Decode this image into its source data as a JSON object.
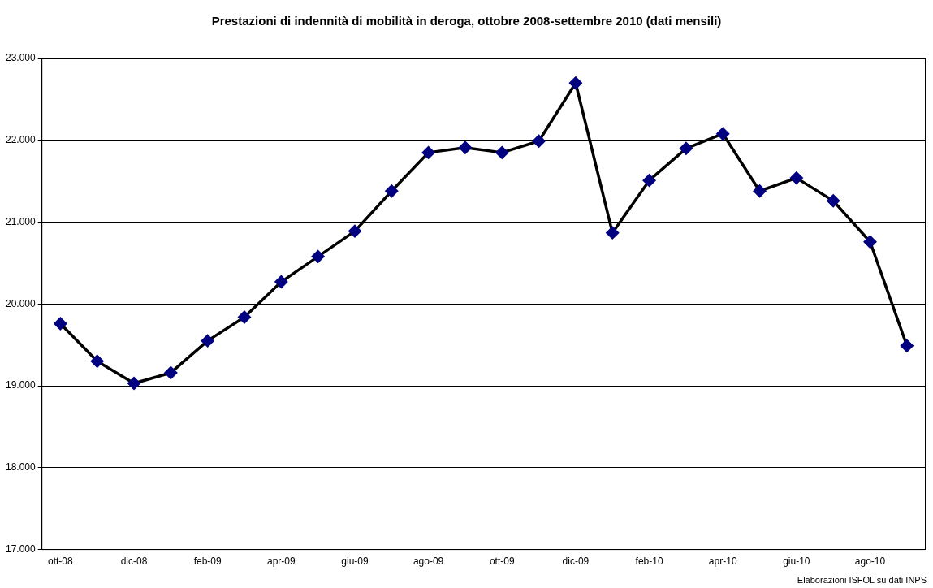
{
  "chart_data": {
    "type": "line",
    "title": "Prestazioni di indennità di mobilità in deroga, ottobre 2008-settembre 2010 (dati mensili)",
    "categories": [
      "ott-08",
      null,
      "dic-08",
      null,
      "feb-09",
      null,
      "apr-09",
      null,
      "giu-09",
      null,
      "ago-09",
      null,
      "ott-09",
      null,
      "dic-09",
      null,
      "feb-10",
      null,
      "apr-10",
      null,
      "giu-10",
      null,
      "ago-10",
      null
    ],
    "series": [
      {
        "color": "#000000",
        "colors": [
          "#000080",
          "#000080",
          "#000080",
          "#000080",
          "#000080",
          "#000080",
          "#000080",
          "#000080",
          "#000080",
          "#000080",
          "#000080",
          "#000080",
          "#000080",
          "#000080",
          "#000080",
          "#000080",
          "#000080",
          "#000080",
          "#000080",
          "#000080",
          "#000080",
          "#000080",
          "#000080",
          "#000080"
        ],
        "values": [
          19760,
          19300,
          19030,
          19160,
          19550,
          19840,
          20270,
          20580,
          20890,
          21380,
          21850,
          21910,
          21850,
          21990,
          22700,
          20870,
          21510,
          21900,
          22080,
          21380,
          21540,
          21260,
          20760,
          19490
        ]
      }
    ],
    "marker": "diamond",
    "line_style": "solid",
    "ylim": [
      17000,
      23000
    ],
    "yticks": [
      {
        "value": 17000,
        "label": "17.000"
      },
      {
        "value": 18000,
        "label": "18.000"
      },
      {
        "value": 19000,
        "label": "19.000"
      },
      {
        "value": 20000,
        "label": "20.000"
      },
      {
        "value": 21000,
        "label": "21.000"
      },
      {
        "value": 22000,
        "label": "22.000"
      },
      {
        "value": 23000,
        "label": "23.000"
      }
    ],
    "grid": "y",
    "legend": false,
    "annotations": [
      "Elaborazioni ISFOL su dati INPS"
    ]
  }
}
